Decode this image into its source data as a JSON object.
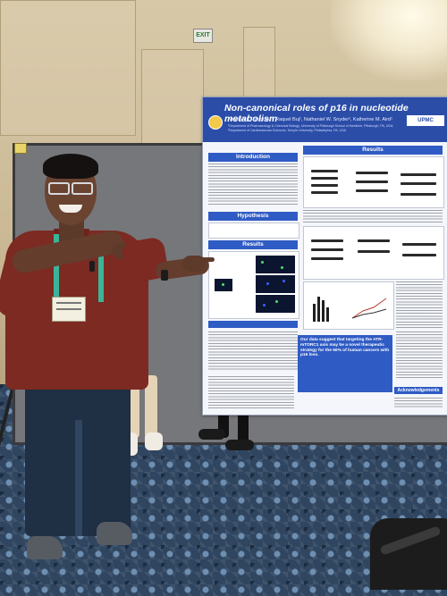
{
  "scene": {
    "description_type": "photo"
  },
  "exit_sign": {
    "label": "EXIT"
  },
  "poster": {
    "title": "Non-canonical roles of p16 in nucleotide metabolism",
    "authors": "Naveen K. Tangudu¹, Raquel Buj¹, Nathaniel W. Snyder², Katherine M. Aird¹",
    "affiliation": "¹Department of Pharmacology & Chemical Biology, University of Pittsburgh School of Medicine, Pittsburgh, PA, USA; ²Department of Cardiovascular Sciences, Temple University, Philadelphia, PA, USA",
    "logo": "UPMC",
    "sections": {
      "introduction": "Introduction",
      "hypothesis": "Hypothesis",
      "results_left": "Results",
      "results_right": "Results",
      "acknowledgements": "Acknowledgements"
    },
    "conclusion": "Our data suggest that targeting the ATR-mTORC1 axis may be a novel therapeutic strategy for the 50% of human cancers with p16 loss."
  },
  "colors": {
    "poster_blue": "#2b4da8",
    "shirt": "#7c2a22",
    "lanyard": "#3bb59a",
    "carpet": "#2f4560"
  }
}
